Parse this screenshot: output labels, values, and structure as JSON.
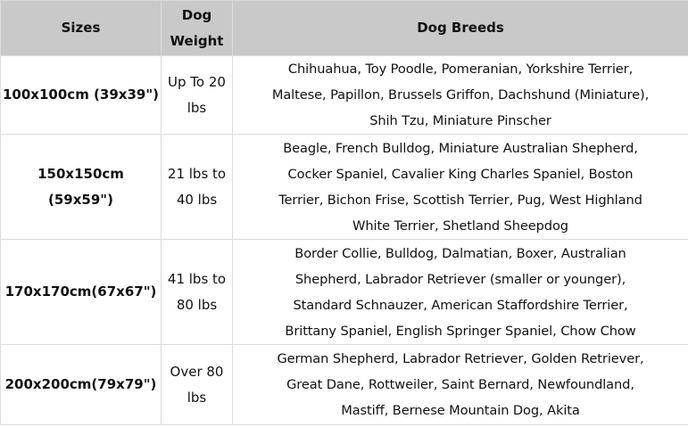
{
  "headers": {
    "sizes": "Sizes",
    "weight": [
      "Dog",
      "Weight"
    ],
    "breeds": "Dog Breeds"
  },
  "rows": [
    {
      "size": [
        "100x100cm (39x39\")"
      ],
      "weight": [
        "Up To 20",
        "lbs"
      ],
      "breeds": [
        "Chihuahua, Toy Poodle, Pomeranian, Yorkshire Terrier,",
        "Maltese, Papillon, Brussels Griffon, Dachshund (Miniature),",
        "Shih Tzu, Miniature Pinscher"
      ]
    },
    {
      "size": [
        "150x150cm",
        "(59x59\")"
      ],
      "weight": [
        "21 lbs to",
        "40 lbs"
      ],
      "breeds": [
        "Beagle, French Bulldog, Miniature Australian Shepherd,",
        "Cocker Spaniel, Cavalier King Charles Spaniel, Boston",
        "Terrier, Bichon Frise, Scottish Terrier, Pug, West Highland",
        "White Terrier, Shetland Sheepdog"
      ]
    },
    {
      "size": [
        "170x170cm(67x67\")"
      ],
      "weight": [
        "41 lbs to",
        "80 lbs"
      ],
      "breeds": [
        "Border Collie, Bulldog, Dalmatian, Boxer, Australian",
        "Shepherd, Labrador Retriever (smaller or younger),",
        "Standard Schnauzer, American Staffordshire Terrier,",
        "Brittany Spaniel, English Springer Spaniel, Chow Chow"
      ]
    },
    {
      "size": [
        "200x200cm(79x79\")"
      ],
      "weight": [
        "Over 80",
        "lbs"
      ],
      "breeds": [
        "German Shepherd, Labrador Retriever, Golden Retriever,",
        "Great Dane, Rottweiler, Saint Bernard, Newfoundland,",
        "Mastiff, Bernese Mountain Dog, Akita"
      ]
    }
  ]
}
